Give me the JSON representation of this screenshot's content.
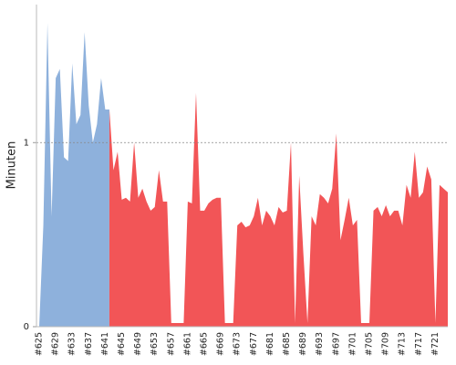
{
  "chart_data": {
    "type": "area",
    "ylabel": "Minuten",
    "categories": [
      "#625",
      null,
      null,
      null,
      "#629",
      null,
      null,
      null,
      "#633",
      null,
      null,
      null,
      "#637",
      null,
      null,
      null,
      "#641",
      null,
      null,
      null,
      "#645",
      null,
      null,
      null,
      "#649",
      null,
      null,
      null,
      "#653",
      null,
      null,
      null,
      "#657",
      null,
      null,
      null,
      "#661",
      null,
      null,
      null,
      "#665",
      null,
      null,
      null,
      "#669",
      null,
      null,
      null,
      "#673",
      null,
      null,
      null,
      "#677",
      null,
      null,
      null,
      "#681",
      null,
      null,
      null,
      "#685",
      null,
      null,
      null,
      "#689",
      null,
      null,
      null,
      "#693",
      null,
      null,
      null,
      "#697",
      null,
      null,
      null,
      "#701",
      null,
      null,
      null,
      "#705",
      null,
      null,
      null,
      "#709",
      null,
      null,
      null,
      "#713",
      null,
      null,
      null,
      "#717",
      null,
      null,
      null,
      "#721",
      null,
      null,
      null
    ],
    "series": [
      {
        "color": "#8eb1dc",
        "values": [
          0,
          0.55,
          1.65,
          0.6,
          1.35,
          1.4,
          0.92,
          0.9,
          1.43,
          1.1,
          1.15,
          1.6,
          1.2,
          1.0,
          1.1,
          1.35,
          1.18,
          1.18,
          null,
          null,
          null,
          null,
          null,
          null,
          null,
          null,
          null,
          null,
          null,
          null,
          null,
          null,
          null,
          null,
          null,
          null,
          null,
          null,
          null,
          null,
          null,
          null,
          null,
          null,
          null,
          null,
          null,
          null,
          null,
          null,
          null,
          null,
          null,
          null,
          null,
          null,
          null,
          null,
          null,
          null,
          null,
          null,
          null,
          null,
          null,
          null,
          null,
          null,
          null,
          null,
          null,
          null,
          null,
          null,
          null,
          null,
          null,
          null,
          null,
          null,
          null,
          null,
          null,
          null,
          null,
          null,
          null,
          null,
          null,
          null,
          null,
          null,
          null,
          null,
          null,
          null,
          null,
          null,
          null,
          null
        ]
      },
      {
        "color": "#f25557",
        "values": [
          null,
          null,
          null,
          null,
          null,
          null,
          null,
          null,
          null,
          null,
          null,
          null,
          null,
          null,
          null,
          null,
          null,
          1.18,
          0.85,
          0.95,
          0.69,
          0.7,
          0.68,
          1.0,
          0.7,
          0.75,
          0.68,
          0.63,
          0.65,
          0.85,
          0.68,
          0.68,
          0.02,
          0.02,
          0.02,
          0.02,
          0.68,
          0.67,
          1.27,
          0.63,
          0.63,
          0.67,
          0.69,
          0.7,
          0.7,
          0.02,
          0.02,
          0.02,
          0.55,
          0.57,
          0.54,
          0.55,
          0.6,
          0.7,
          0.55,
          0.63,
          0.6,
          0.55,
          0.65,
          0.62,
          0.63,
          1.0,
          0.02,
          0.82,
          0.4,
          0.02,
          0.6,
          0.55,
          0.72,
          0.7,
          0.67,
          0.75,
          1.05,
          0.47,
          0.58,
          0.7,
          0.55,
          0.58,
          0.02,
          0.02,
          0.02,
          0.63,
          0.65,
          0.6,
          0.66,
          0.6,
          0.63,
          0.63,
          0.55,
          0.77,
          0.7,
          0.95,
          0.7,
          0.73,
          0.87,
          0.8,
          0.02,
          0.77,
          0.75,
          0.73
        ]
      }
    ],
    "ylim": [
      0,
      1.75
    ],
    "yticks": [
      0,
      1
    ],
    "grid": true
  }
}
